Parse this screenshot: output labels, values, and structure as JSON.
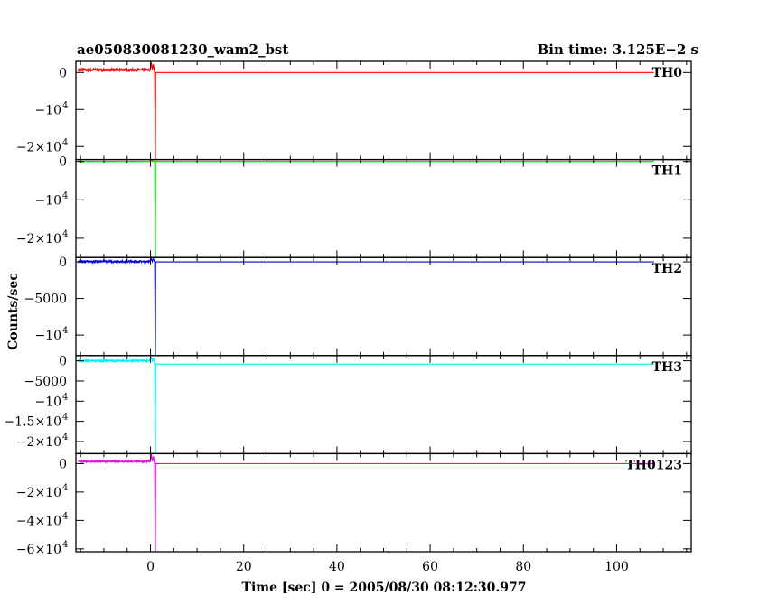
{
  "chart_data": {
    "type": "line",
    "title": "ae050830081230_wam2_bst",
    "subtitle": "Bin time: 3.125E−2 s",
    "xlabel": "Time [sec] 0 = 2005/08/30 08:12:30.977",
    "ylabel": "Counts/sec",
    "xlim": [
      -16,
      116
    ],
    "x_ticks": [
      {
        "value": 0,
        "label": "0"
      },
      {
        "value": 20,
        "label": "20"
      },
      {
        "value": 40,
        "label": "40"
      },
      {
        "value": 60,
        "label": "60"
      },
      {
        "value": 80,
        "label": "80"
      },
      {
        "value": 100,
        "label": "100"
      }
    ],
    "panels": [
      {
        "name": "TH0",
        "color": "#ff0000",
        "ylim": [
          -23500,
          3000
        ],
        "y_ticks": [
          {
            "value": 0,
            "mant": "0",
            "exp": ""
          },
          {
            "value": -10000,
            "mant": "−10",
            "exp": "4"
          },
          {
            "value": -20000,
            "mant": "−2×10",
            "exp": "4"
          }
        ],
        "baseline": 700,
        "noise": 350,
        "peak": 2800,
        "after_level": 0,
        "drop_to": -23500
      },
      {
        "name": "TH1",
        "color": "#00dd00",
        "ylim": [
          -25000,
          500
        ],
        "y_ticks": [
          {
            "value": 0,
            "mant": "0",
            "exp": ""
          },
          {
            "value": -10000,
            "mant": "−10",
            "exp": "4"
          },
          {
            "value": -20000,
            "mant": "−2×10",
            "exp": "4"
          }
        ],
        "baseline": 0,
        "noise": 40,
        "peak": 400,
        "after_level": 0,
        "drop_to": -25000
      },
      {
        "name": "TH2",
        "color": "#0000dd",
        "ylim": [
          -12800,
          600
        ],
        "y_ticks": [
          {
            "value": 0,
            "mant": "0",
            "exp": ""
          },
          {
            "value": -5000,
            "mant": "−5000",
            "exp": ""
          },
          {
            "value": -10000,
            "mant": "−10",
            "exp": "4"
          }
        ],
        "baseline": 50,
        "noise": 120,
        "peak": 550,
        "after_level": 0,
        "drop_to": -12800
      },
      {
        "name": "TH3",
        "color": "#00eeee",
        "ylim": [
          -23000,
          1300
        ],
        "y_ticks": [
          {
            "value": 0,
            "mant": "0",
            "exp": ""
          },
          {
            "value": -5000,
            "mant": "−5000",
            "exp": ""
          },
          {
            "value": -10000,
            "mant": "−10",
            "exp": "4"
          },
          {
            "value": -15000,
            "mant": "−1.5×10",
            "exp": "4"
          },
          {
            "value": -20000,
            "mant": "−2×10",
            "exp": "4"
          }
        ],
        "baseline": 0,
        "noise": 200,
        "peak": 1000,
        "after_level": -800,
        "drop_to": -23000
      },
      {
        "name": "TH0123",
        "color": "#ee00ee",
        "ylim": [
          -62000,
          7000
        ],
        "y_ticks": [
          {
            "value": 0,
            "mant": "0",
            "exp": ""
          },
          {
            "value": -20000,
            "mant": "−2×10",
            "exp": "4"
          },
          {
            "value": -40000,
            "mant": "−4×10",
            "exp": "4"
          },
          {
            "value": -60000,
            "mant": "−6×10",
            "exp": "4"
          }
        ],
        "baseline": 1500,
        "noise": 450,
        "peak": 6500,
        "after_level": 0,
        "drop_to": -62000
      }
    ]
  }
}
